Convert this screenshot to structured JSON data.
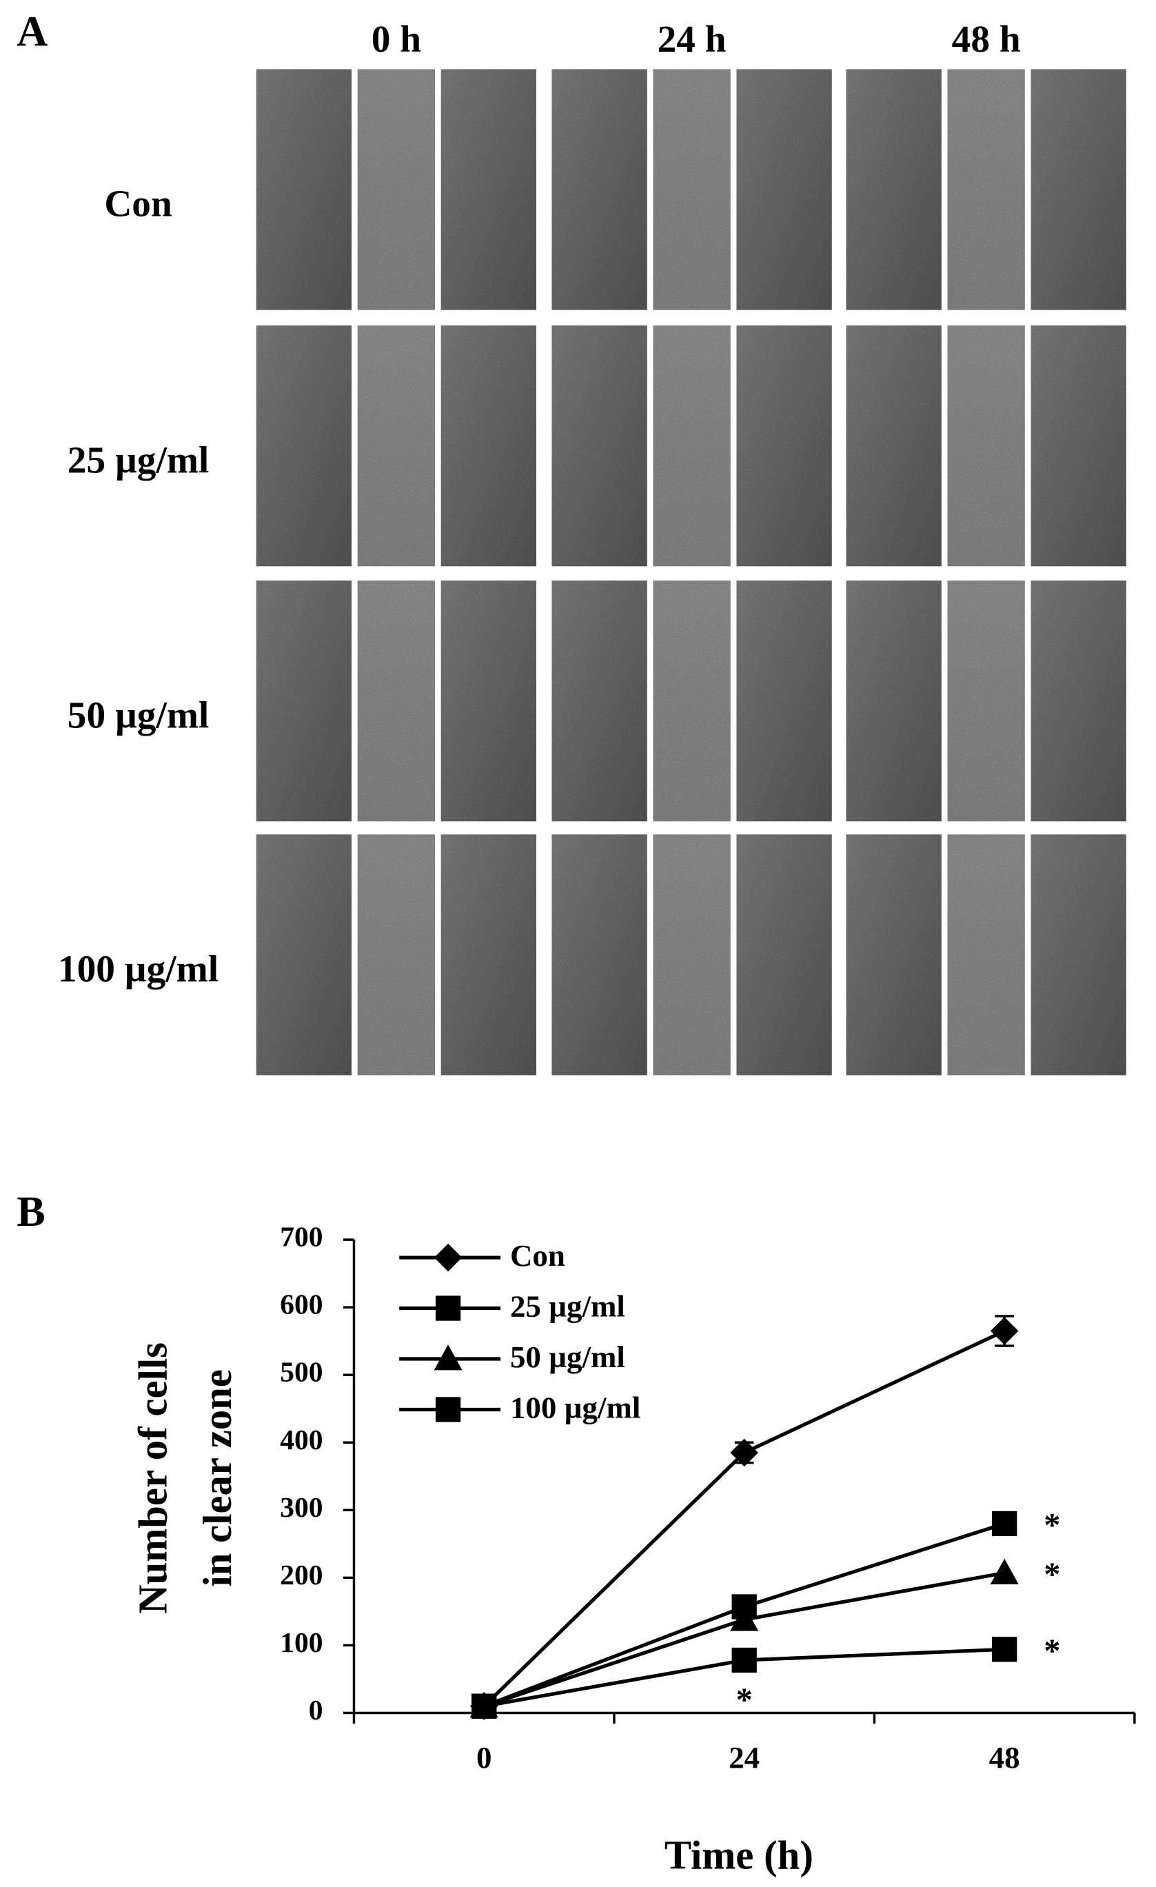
{
  "panel_a": {
    "label": "A",
    "columns": [
      "0 h",
      "24 h",
      "48 h"
    ],
    "rows": [
      "Con",
      "25 µg/ml",
      "50 µg/ml",
      "100 µg/ml"
    ]
  },
  "chart_data": {
    "type": "line",
    "panel_label": "B",
    "x_label": "Time (h)",
    "y_label": [
      "Number of cells",
      "in clear zone"
    ],
    "categories": [
      "0",
      "24",
      "48"
    ],
    "ylim": [
      0,
      700
    ],
    "yticks": [
      0,
      100,
      200,
      300,
      400,
      500,
      600,
      700
    ],
    "legend": "upper left",
    "series": [
      {
        "name": "Con",
        "color": "#000000",
        "marker": "diamond",
        "values": [
          10,
          385,
          565
        ],
        "errors": [
          3,
          15,
          22
        ],
        "significance": [
          null,
          null,
          null
        ]
      },
      {
        "name": "25 µg/ml",
        "color": "#000000",
        "marker": "square",
        "values": [
          10,
          157,
          280
        ],
        "significance": [
          null,
          null,
          "*"
        ]
      },
      {
        "name": "50 µg/ml",
        "color": "#000000",
        "marker": "triangle",
        "values": [
          10,
          138,
          207
        ],
        "significance": [
          null,
          null,
          "*"
        ]
      },
      {
        "name": "100 µg/ml",
        "color": "#000000",
        "marker": "square",
        "values": [
          10,
          78,
          94
        ],
        "significance": [
          null,
          "*",
          "*"
        ]
      }
    ]
  }
}
